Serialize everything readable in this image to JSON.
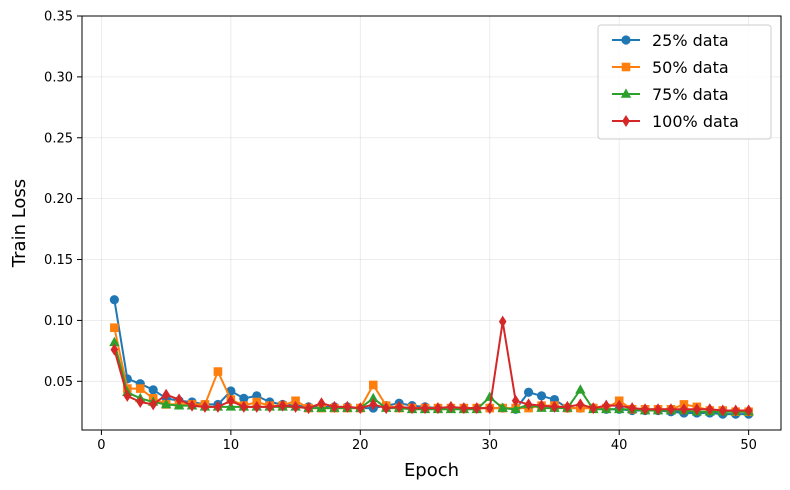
{
  "chart_data": {
    "type": "line",
    "title": "",
    "xlabel": "Epoch",
    "ylabel": "Train Loss",
    "xlim": [
      -1.5,
      52.5
    ],
    "ylim": [
      0.01,
      0.35
    ],
    "xticks": [
      0,
      10,
      20,
      30,
      40,
      50
    ],
    "yticks": [
      0.05,
      0.1,
      0.15,
      0.2,
      0.25,
      0.3,
      0.35
    ],
    "xtick_labels": [
      "0",
      "10",
      "20",
      "30",
      "40",
      "50"
    ],
    "ytick_labels": [
      "0.05",
      "0.10",
      "0.15",
      "0.20",
      "0.25",
      "0.30",
      "0.35"
    ],
    "grid": true,
    "legend_position": "top-right",
    "x": [
      1,
      2,
      3,
      4,
      5,
      6,
      7,
      8,
      9,
      10,
      11,
      12,
      13,
      14,
      15,
      16,
      17,
      18,
      19,
      20,
      21,
      22,
      23,
      24,
      25,
      26,
      27,
      28,
      29,
      30,
      31,
      32,
      33,
      34,
      35,
      36,
      37,
      38,
      39,
      40,
      41,
      42,
      43,
      44,
      45,
      46,
      47,
      48,
      49,
      50
    ],
    "series": [
      {
        "name": "25% data",
        "color": "#1f77b4",
        "marker": "circle",
        "values": [
          0.117,
          0.052,
          0.048,
          0.043,
          0.036,
          0.034,
          0.033,
          0.031,
          0.031,
          0.042,
          0.036,
          0.038,
          0.033,
          0.031,
          0.03,
          0.029,
          0.029,
          0.029,
          0.029,
          0.028,
          0.028,
          0.03,
          0.032,
          0.03,
          0.029,
          0.028,
          0.028,
          0.028,
          0.028,
          0.028,
          0.028,
          0.027,
          0.041,
          0.038,
          0.035,
          0.028,
          0.028,
          0.028,
          0.027,
          0.027,
          0.026,
          0.026,
          0.026,
          0.025,
          0.024,
          0.024,
          0.024,
          0.023,
          0.023,
          0.023
        ]
      },
      {
        "name": "50% data",
        "color": "#ff7f0e",
        "marker": "square",
        "values": [
          0.094,
          0.044,
          0.044,
          0.036,
          0.031,
          0.031,
          0.031,
          0.031,
          0.058,
          0.035,
          0.03,
          0.033,
          0.03,
          0.03,
          0.034,
          0.028,
          0.028,
          0.028,
          0.028,
          0.028,
          0.047,
          0.03,
          0.028,
          0.028,
          0.028,
          0.028,
          0.028,
          0.028,
          0.028,
          0.028,
          0.028,
          0.028,
          0.028,
          0.03,
          0.03,
          0.028,
          0.028,
          0.028,
          0.028,
          0.034,
          0.027,
          0.027,
          0.027,
          0.027,
          0.031,
          0.029,
          0.026,
          0.026,
          0.025,
          0.025
        ]
      },
      {
        "name": "75% data",
        "color": "#2ca02c",
        "marker": "triangle",
        "values": [
          0.082,
          0.041,
          0.036,
          0.033,
          0.031,
          0.03,
          0.03,
          0.029,
          0.029,
          0.029,
          0.029,
          0.029,
          0.029,
          0.029,
          0.029,
          0.028,
          0.028,
          0.028,
          0.028,
          0.028,
          0.036,
          0.028,
          0.028,
          0.027,
          0.027,
          0.027,
          0.027,
          0.027,
          0.027,
          0.037,
          0.028,
          0.027,
          0.031,
          0.028,
          0.028,
          0.028,
          0.043,
          0.027,
          0.027,
          0.027,
          0.027,
          0.026,
          0.026,
          0.026,
          0.026,
          0.025,
          0.025,
          0.025,
          0.025,
          0.025
        ]
      },
      {
        "name": "100% data",
        "color": "#d62728",
        "marker": "diamond",
        "values": [
          0.076,
          0.038,
          0.033,
          0.031,
          0.039,
          0.035,
          0.03,
          0.029,
          0.029,
          0.034,
          0.029,
          0.029,
          0.029,
          0.03,
          0.029,
          0.028,
          0.032,
          0.029,
          0.029,
          0.028,
          0.031,
          0.028,
          0.029,
          0.028,
          0.028,
          0.028,
          0.029,
          0.028,
          0.028,
          0.028,
          0.099,
          0.034,
          0.031,
          0.03,
          0.029,
          0.029,
          0.031,
          0.028,
          0.03,
          0.03,
          0.028,
          0.027,
          0.027,
          0.027,
          0.027,
          0.027,
          0.027,
          0.026,
          0.026,
          0.026
        ]
      }
    ]
  }
}
